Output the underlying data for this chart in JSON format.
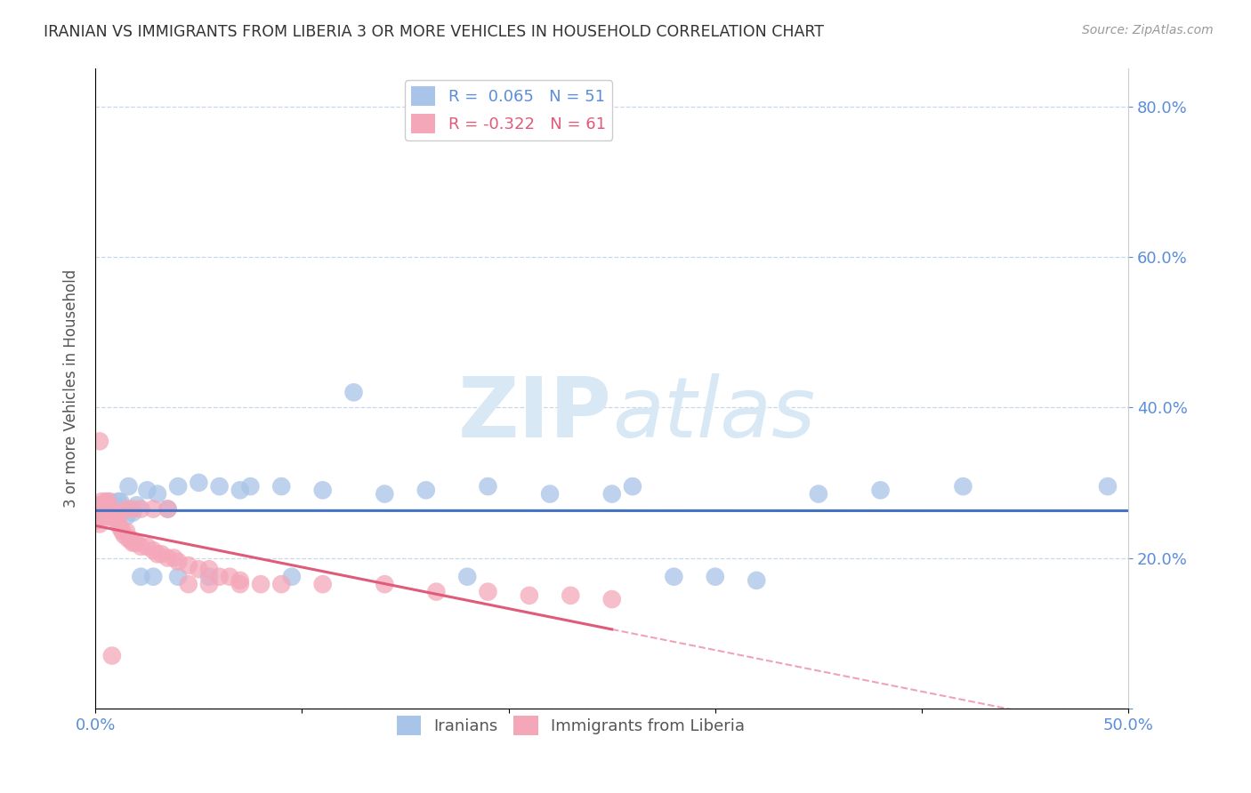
{
  "title": "IRANIAN VS IMMIGRANTS FROM LIBERIA 3 OR MORE VEHICLES IN HOUSEHOLD CORRELATION CHART",
  "source": "Source: ZipAtlas.com",
  "ylabel": "3 or more Vehicles in Household",
  "xlim": [
    0.0,
    0.5
  ],
  "ylim": [
    0.0,
    0.85
  ],
  "xticks": [
    0.0,
    0.1,
    0.2,
    0.3,
    0.4,
    0.5
  ],
  "yticks_left": [
    0.0,
    0.2,
    0.4,
    0.6,
    0.8
  ],
  "yticks_right": [
    0.0,
    0.2,
    0.4,
    0.6,
    0.8
  ],
  "ytick_labels_right": [
    "",
    "20.0%",
    "40.0%",
    "60.0%",
    "80.0%"
  ],
  "xtick_labels": [
    "0.0%",
    "",
    "",
    "",
    "",
    "50.0%"
  ],
  "iranians_R": 0.065,
  "iranians_N": 51,
  "liberia_R": -0.322,
  "liberia_N": 61,
  "blue_color": "#a8c4e8",
  "pink_color": "#f4a7b9",
  "blue_line_color": "#4472c4",
  "pink_line_color": "#e05a7a",
  "axis_color": "#5b8dd9",
  "title_color": "#333333",
  "grid_color": "#c8d8e8",
  "watermark_color": "#d8e8f5",
  "iranians_x": [
    0.001,
    0.002,
    0.003,
    0.004,
    0.005,
    0.006,
    0.007,
    0.008,
    0.009,
    0.01,
    0.011,
    0.013,
    0.015,
    0.018,
    0.02,
    0.025,
    0.03,
    0.035,
    0.04,
    0.05,
    0.06,
    0.07,
    0.09,
    0.11,
    0.14,
    0.16,
    0.19,
    0.22,
    0.25,
    0.28,
    0.3,
    0.32,
    0.35,
    0.38,
    0.42,
    0.005,
    0.007,
    0.009,
    0.012,
    0.016,
    0.022,
    0.028,
    0.04,
    0.055,
    0.075,
    0.095,
    0.125,
    0.18,
    0.26,
    0.49
  ],
  "iranians_y": [
    0.265,
    0.27,
    0.27,
    0.27,
    0.265,
    0.26,
    0.27,
    0.265,
    0.255,
    0.265,
    0.275,
    0.265,
    0.255,
    0.26,
    0.27,
    0.29,
    0.285,
    0.265,
    0.295,
    0.3,
    0.295,
    0.29,
    0.295,
    0.29,
    0.285,
    0.29,
    0.295,
    0.285,
    0.285,
    0.175,
    0.175,
    0.17,
    0.285,
    0.29,
    0.295,
    0.255,
    0.275,
    0.27,
    0.275,
    0.295,
    0.175,
    0.175,
    0.175,
    0.175,
    0.295,
    0.175,
    0.42,
    0.175,
    0.295,
    0.295
  ],
  "liberia_x": [
    0.001,
    0.002,
    0.003,
    0.004,
    0.005,
    0.006,
    0.007,
    0.008,
    0.009,
    0.01,
    0.011,
    0.012,
    0.013,
    0.014,
    0.015,
    0.016,
    0.017,
    0.018,
    0.019,
    0.02,
    0.022,
    0.025,
    0.028,
    0.03,
    0.032,
    0.035,
    0.038,
    0.04,
    0.045,
    0.05,
    0.055,
    0.06,
    0.065,
    0.07,
    0.08,
    0.003,
    0.005,
    0.007,
    0.01,
    0.012,
    0.015,
    0.018,
    0.022,
    0.028,
    0.035,
    0.045,
    0.055,
    0.07,
    0.09,
    0.11,
    0.14,
    0.165,
    0.19,
    0.21,
    0.23,
    0.25,
    0.002,
    0.004,
    0.006,
    0.008
  ],
  "liberia_y": [
    0.25,
    0.245,
    0.255,
    0.265,
    0.27,
    0.26,
    0.255,
    0.26,
    0.255,
    0.25,
    0.245,
    0.24,
    0.235,
    0.23,
    0.235,
    0.225,
    0.225,
    0.22,
    0.22,
    0.22,
    0.215,
    0.215,
    0.21,
    0.205,
    0.205,
    0.2,
    0.2,
    0.195,
    0.19,
    0.185,
    0.185,
    0.175,
    0.175,
    0.17,
    0.165,
    0.275,
    0.275,
    0.265,
    0.26,
    0.26,
    0.265,
    0.265,
    0.265,
    0.265,
    0.265,
    0.165,
    0.165,
    0.165,
    0.165,
    0.165,
    0.165,
    0.155,
    0.155,
    0.15,
    0.15,
    0.145,
    0.355,
    0.27,
    0.275,
    0.07
  ]
}
